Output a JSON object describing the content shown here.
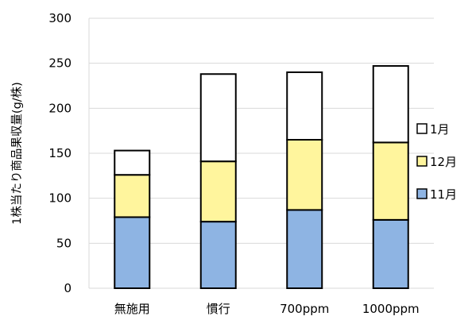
{
  "chart_data": {
    "type": "bar",
    "stacked": true,
    "categories": [
      "無施用",
      "慣行",
      "700ppm",
      "1000ppm"
    ],
    "series": [
      {
        "name": "11月",
        "color": "#8EB4E3",
        "values": [
          79,
          74,
          87,
          76
        ]
      },
      {
        "name": "12月",
        "color": "#FFF59D",
        "values": [
          47,
          67,
          78,
          86
        ]
      },
      {
        "name": "1月",
        "color": "#FFFFFF",
        "values": [
          27,
          97,
          75,
          85
        ]
      }
    ],
    "ylabel": "1株当たり商品果収量(g/株)",
    "xlabel": "",
    "ylim": [
      0,
      300
    ],
    "yticks": [
      "0",
      "50",
      "100",
      "150",
      "200",
      "250",
      "300"
    ],
    "ytick_values": [
      0,
      50,
      100,
      150,
      200,
      250,
      300
    ],
    "grid": true,
    "legend_position": "right",
    "legend_order": [
      "1月",
      "12月",
      "11月"
    ]
  }
}
